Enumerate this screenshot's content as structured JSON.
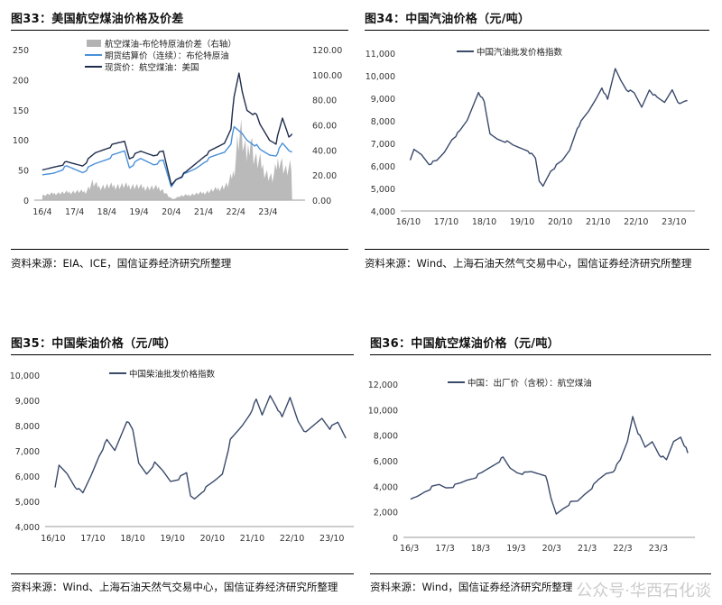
{
  "panels": [
    {
      "title": "图33：美国航空煤油价格及价差",
      "source": "资料来源：EIA、ICE，国信证券经济研究所整理"
    },
    {
      "title": "图34：中国汽油价格（元/吨）",
      "source": "资料来源：Wind、上海石油天然气交易中心，国信证券经济研究所整理"
    },
    {
      "title": "图35：中国柴油价格（元/吨）",
      "source": "资料来源：Wind、上海石油天然气交易中心，国信证券经济研究所整理"
    },
    {
      "title": "图36：中国航空煤油价格（元/吨）",
      "source": "资料来源：Wind，国信证券经济研究所整理"
    }
  ],
  "watermark": "公众号·华西石化谈",
  "chart_data": [
    {
      "type": "line",
      "colors": {
        "spread": "#b3b3b3",
        "futures": "#4a90d9",
        "spot": "#1f2d4d"
      },
      "xticks": [
        "16/4",
        "17/4",
        "18/4",
        "19/4",
        "20/4",
        "21/4",
        "22/4",
        "23/4"
      ],
      "ylim": [
        0,
        250
      ],
      "yticks": [
        "0",
        "50",
        "100",
        "150",
        "200",
        "250"
      ],
      "y2lim": [
        0,
        120
      ],
      "y2ticks": [
        "0.00",
        "20.00",
        "40.00",
        "60.00",
        "80.00",
        "100.00",
        "120.00"
      ],
      "legend": "top-left",
      "series": [
        {
          "name": "航空煤油-布伦特原油价差（右轴）",
          "kind": "area",
          "axis": "right",
          "x": [
            2016.25,
            2016.6,
            2017.0,
            2017.3,
            2017.6,
            2017.8,
            2018.0,
            2018.5,
            2019.0,
            2019.5,
            2019.9,
            2020.2,
            2020.3,
            2020.5,
            2020.9,
            2021.3,
            2021.7,
            2022.0,
            2022.2,
            2022.3,
            2022.4,
            2022.5,
            2022.6,
            2022.7,
            2022.8,
            2022.9,
            2023.0,
            2023.2,
            2023.4,
            2023.6,
            2023.8,
            2024.0
          ],
          "values": [
            5,
            7,
            8,
            9,
            9,
            18,
            14,
            15,
            15,
            13,
            13,
            3,
            1,
            4,
            6,
            8,
            12,
            16,
            30,
            60,
            75,
            55,
            45,
            70,
            48,
            40,
            40,
            28,
            22,
            45,
            30,
            35
          ]
        },
        {
          "name": "期货结算价（连续）：布伦特原油",
          "kind": "line",
          "axis": "left",
          "x": [
            2016.25,
            2016.6,
            2017.0,
            2017.5,
            2017.9,
            2018.3,
            2018.8,
            2018.95,
            2019.3,
            2019.7,
            2020.0,
            2020.25,
            2020.4,
            2020.7,
            2021.0,
            2021.3,
            2021.6,
            2021.9,
            2022.1,
            2022.2,
            2022.45,
            2022.6,
            2022.9,
            2023.0,
            2023.3,
            2023.5,
            2023.7,
            2023.9,
            2024.0
          ],
          "values": [
            40,
            45,
            55,
            47,
            60,
            70,
            82,
            55,
            68,
            60,
            65,
            22,
            35,
            43,
            52,
            65,
            73,
            80,
            95,
            120,
            110,
            100,
            90,
            83,
            75,
            75,
            93,
            82,
            80
          ]
        },
        {
          "name": "现货价：航空煤油：美国",
          "kind": "line",
          "axis": "left",
          "x": [
            2016.25,
            2016.6,
            2017.0,
            2017.5,
            2017.9,
            2018.3,
            2018.8,
            2018.95,
            2019.3,
            2019.7,
            2020.0,
            2020.25,
            2020.4,
            2020.7,
            2021.0,
            2021.3,
            2021.6,
            2021.9,
            2022.1,
            2022.2,
            2022.35,
            2022.45,
            2022.6,
            2022.9,
            2023.0,
            2023.3,
            2023.5,
            2023.7,
            2023.9,
            2024.0
          ],
          "values": [
            48,
            55,
            62,
            58,
            78,
            88,
            98,
            70,
            80,
            75,
            80,
            25,
            35,
            45,
            60,
            75,
            85,
            95,
            120,
            170,
            210,
            180,
            150,
            140,
            125,
            100,
            95,
            135,
            105,
            110
          ]
        }
      ]
    },
    {
      "type": "line",
      "colors": {
        "line": "#3a4a6b"
      },
      "xticks": [
        "16/10",
        "17/10",
        "18/10",
        "19/10",
        "20/10",
        "21/10",
        "22/10",
        "23/10"
      ],
      "ylim": [
        4000,
        11000
      ],
      "yticks": [
        "4,000",
        "5,000",
        "6,000",
        "7,000",
        "8,000",
        "9,000",
        "10,000",
        "11,000"
      ],
      "legend": "top-left",
      "series": [
        {
          "name": "中国汽油批发价格指数",
          "x": [
            2016.8,
            2016.9,
            2017.1,
            2017.3,
            2017.5,
            2017.7,
            2017.9,
            2018.1,
            2018.3,
            2018.6,
            2018.75,
            2018.9,
            2019.1,
            2019.3,
            2019.5,
            2019.7,
            2019.9,
            2020.1,
            2020.2,
            2020.3,
            2020.5,
            2020.8,
            2021.0,
            2021.2,
            2021.5,
            2021.7,
            2021.85,
            2022.0,
            2022.2,
            2022.35,
            2022.5,
            2022.7,
            2022.9,
            2023.1,
            2023.3,
            2023.5,
            2023.7,
            2023.9,
            2024.1
          ],
          "values": [
            6200,
            6700,
            6500,
            6100,
            6200,
            6600,
            7200,
            7500,
            8000,
            9300,
            8800,
            7400,
            7200,
            7100,
            6900,
            6800,
            6700,
            6300,
            5300,
            5100,
            5800,
            6200,
            6700,
            7700,
            8400,
            9000,
            9500,
            8900,
            10300,
            9800,
            9400,
            9200,
            8600,
            9400,
            9000,
            8800,
            9400,
            8700,
            8900
          ]
        }
      ]
    },
    {
      "type": "line",
      "colors": {
        "line": "#3a4a6b"
      },
      "xticks": [
        "16/10",
        "17/10",
        "18/10",
        "19/10",
        "20/10",
        "21/10",
        "22/10",
        "23/10"
      ],
      "ylim": [
        4000,
        10000
      ],
      "yticks": [
        "4,000",
        "5,000",
        "6,000",
        "7,000",
        "8,000",
        "9,000",
        "10,000"
      ],
      "legend": "top-left",
      "series": [
        {
          "name": "中国柴油批发价格指数",
          "x": [
            2016.8,
            2016.9,
            2017.1,
            2017.3,
            2017.5,
            2017.7,
            2017.9,
            2018.1,
            2018.3,
            2018.6,
            2018.75,
            2018.9,
            2019.1,
            2019.3,
            2019.5,
            2019.7,
            2019.9,
            2020.1,
            2020.2,
            2020.3,
            2020.5,
            2020.8,
            2021.0,
            2021.2,
            2021.5,
            2021.7,
            2021.85,
            2022.0,
            2022.2,
            2022.35,
            2022.5,
            2022.7,
            2022.9,
            2023.1,
            2023.3,
            2023.5,
            2023.7,
            2023.9,
            2024.1
          ],
          "values": [
            5500,
            6400,
            6100,
            5600,
            5300,
            6000,
            6800,
            7400,
            7000,
            8200,
            7800,
            6500,
            6100,
            6500,
            6200,
            5800,
            5900,
            6100,
            5200,
            5100,
            5400,
            5800,
            6100,
            7400,
            8000,
            8500,
            9000,
            8400,
            9200,
            8800,
            8300,
            9100,
            8200,
            7700,
            8000,
            8300,
            7900,
            8100,
            7500
          ]
        }
      ]
    },
    {
      "type": "line",
      "colors": {
        "line": "#3a4a6b"
      },
      "xticks": [
        "16/3",
        "17/3",
        "18/3",
        "19/3",
        "20/3",
        "21/3",
        "22/3",
        "23/3"
      ],
      "ylim": [
        0,
        12000
      ],
      "yticks": [
        "0",
        "2,000",
        "4,000",
        "6,000",
        "8,000",
        "10,000",
        "12,000"
      ],
      "legend": "top-left",
      "series": [
        {
          "name": "中国：出厂价（含税）：航空煤油",
          "x": [
            2016.2,
            2016.4,
            2016.6,
            2016.8,
            2017.0,
            2017.2,
            2017.4,
            2017.6,
            2017.8,
            2018.0,
            2018.2,
            2018.4,
            2018.6,
            2018.8,
            2019.0,
            2019.2,
            2019.4,
            2019.6,
            2019.8,
            2020.0,
            2020.15,
            2020.3,
            2020.5,
            2020.7,
            2020.9,
            2021.1,
            2021.3,
            2021.5,
            2021.7,
            2021.9,
            2022.1,
            2022.3,
            2022.45,
            2022.6,
            2022.8,
            2023.0,
            2023.2,
            2023.4,
            2023.6,
            2023.8,
            2024.0
          ],
          "values": [
            2900,
            3200,
            3600,
            3900,
            4100,
            3900,
            4000,
            4200,
            4500,
            4700,
            5000,
            5400,
            5800,
            6200,
            5400,
            5100,
            5000,
            5100,
            5000,
            4900,
            3000,
            1800,
            2300,
            2700,
            2800,
            3400,
            3900,
            4500,
            5000,
            5200,
            6000,
            7500,
            9500,
            8200,
            7000,
            7500,
            6500,
            6000,
            7500,
            7900,
            6600
          ]
        }
      ]
    }
  ]
}
